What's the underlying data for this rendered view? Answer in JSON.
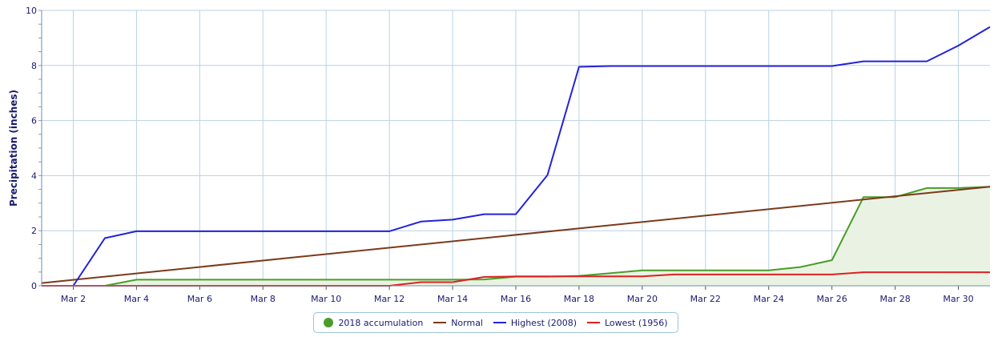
{
  "chart_data": {
    "type": "line",
    "ylabel": "Precipitation (inches)",
    "xlabel": "",
    "ylim": [
      0,
      10
    ],
    "yticks": [
      0,
      2,
      4,
      6,
      8,
      10
    ],
    "xlim": [
      1,
      31
    ],
    "xticks": [
      2,
      4,
      6,
      8,
      10,
      12,
      14,
      16,
      18,
      20,
      22,
      24,
      26,
      28,
      30
    ],
    "xtick_labels": [
      "Mar 2",
      "Mar 4",
      "Mar 6",
      "Mar 8",
      "Mar 10",
      "Mar 12",
      "Mar 14",
      "Mar 16",
      "Mar 18",
      "Mar 20",
      "Mar 22",
      "Mar 24",
      "Mar 26",
      "Mar 28",
      "Mar 30"
    ],
    "grid": true,
    "legend_position": "bottom-center",
    "series": [
      {
        "name": "2018 accumulation",
        "color": "#4a9d27",
        "fill": "#eaf3e3",
        "style": "area",
        "x": [
          1,
          2,
          3,
          4,
          5,
          6,
          7,
          8,
          9,
          10,
          11,
          12,
          13,
          14,
          15,
          16,
          17,
          18,
          19,
          20,
          21,
          22,
          23,
          24,
          25,
          26,
          27,
          28,
          29,
          30,
          31
        ],
        "values": [
          0,
          0,
          0,
          0.22,
          0.22,
          0.22,
          0.22,
          0.22,
          0.22,
          0.22,
          0.22,
          0.22,
          0.22,
          0.22,
          0.23,
          0.33,
          0.33,
          0.36,
          0.46,
          0.56,
          0.56,
          0.56,
          0.56,
          0.56,
          0.68,
          0.93,
          3.22,
          3.22,
          3.55,
          3.55,
          3.6
        ]
      },
      {
        "name": "Normal",
        "color": "#7a3a1a",
        "style": "line",
        "x": [
          1,
          31
        ],
        "values": [
          0.1,
          3.6
        ]
      },
      {
        "name": "Highest (2008)",
        "color": "#2323d8",
        "style": "line",
        "x": [
          1,
          2,
          3,
          4,
          5,
          6,
          7,
          8,
          9,
          10,
          11,
          12,
          13,
          14,
          15,
          16,
          17,
          18,
          19,
          20,
          21,
          22,
          23,
          24,
          25,
          26,
          27,
          28,
          29,
          30,
          31
        ],
        "values": [
          0,
          0,
          1.73,
          1.98,
          1.98,
          1.98,
          1.98,
          1.98,
          1.98,
          1.98,
          1.98,
          1.98,
          2.33,
          2.4,
          2.6,
          2.6,
          4.02,
          7.95,
          7.98,
          7.98,
          7.98,
          7.98,
          7.98,
          7.98,
          7.98,
          7.98,
          8.15,
          8.15,
          8.15,
          8.72,
          9.4
        ]
      },
      {
        "name": "Lowest (1956)",
        "color": "#e02020",
        "style": "line",
        "x": [
          1,
          2,
          3,
          4,
          5,
          6,
          7,
          8,
          9,
          10,
          11,
          12,
          13,
          14,
          15,
          16,
          17,
          18,
          19,
          20,
          21,
          22,
          23,
          24,
          25,
          26,
          27,
          28,
          29,
          30,
          31
        ],
        "values": [
          0,
          0,
          0,
          0,
          0,
          0,
          0,
          0,
          0,
          0,
          0,
          0,
          0.13,
          0.13,
          0.32,
          0.34,
          0.34,
          0.34,
          0.34,
          0.34,
          0.41,
          0.41,
          0.41,
          0.41,
          0.41,
          0.41,
          0.49,
          0.49,
          0.49,
          0.49,
          0.49
        ]
      }
    ]
  },
  "legend": {
    "items": [
      {
        "label": "2018 accumulation",
        "color": "#4a9d27",
        "marker": "dot"
      },
      {
        "label": "Normal",
        "color": "#7a3a1a",
        "marker": "line"
      },
      {
        "label": "Highest (2008)",
        "color": "#2323d8",
        "marker": "line"
      },
      {
        "label": "Lowest (1956)",
        "color": "#e02020",
        "marker": "line"
      }
    ]
  }
}
